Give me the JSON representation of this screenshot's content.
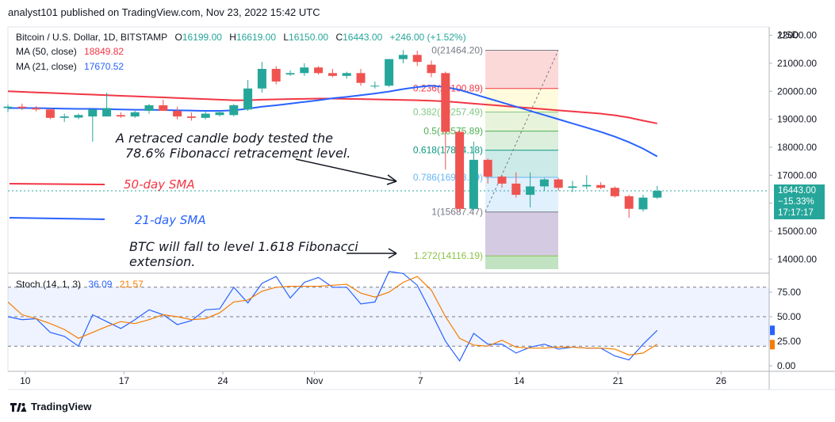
{
  "header": {
    "publisher_text": "analyst101 published on TradingView.com, Nov 23, 2022 15:42 UTC"
  },
  "legend": {
    "symbol": "Bitcoin / U.S. Dollar, 1D, BITSTAMP",
    "o_label": "O",
    "o_value": "16199.00",
    "h_label": "H",
    "h_value": "16619.00",
    "l_label": "L",
    "l_value": "16150.00",
    "c_label": "C",
    "c_value": "16443.00",
    "change": "+246.00 (+1.52%)",
    "ma50_label": "MA (50, close)",
    "ma50_value": "18849.82",
    "ma21_label": "MA (21, close)",
    "ma21_value": "17670.52"
  },
  "stoch": {
    "label": "Stoch (14, 1, 3)",
    "k_value": "36.09",
    "d_value": "21.57"
  },
  "annotations": {
    "candle_note_line1": "A retraced candle body tested the",
    "candle_note_line2": "78.6% Fibonacci retracement level.",
    "sma50_label": "50-day SMA",
    "sma21_label": "21-day SMA",
    "btc_note_line1": "BTC will fall to level 1.618 Fibonacci",
    "btc_note_line2": "extension."
  },
  "price_box": {
    "price": "16443.00",
    "change": "−15.33%",
    "countdown": "17:17:17"
  },
  "footer": {
    "brand": "TradingView"
  },
  "colors": {
    "up": "#26a69a",
    "down": "#ef5350",
    "ma50": "#f23645",
    "ma21": "#2962ff",
    "stoch_k": "#2962ff",
    "stoch_d": "#f57c00"
  },
  "chart_data": [
    {
      "type": "candlestick",
      "title": "Bitcoin / U.S. Dollar, 1D, BITSTAMP",
      "y_axis_label": "USD",
      "ylim": [
        13500,
        22300
      ],
      "y_ticks": [
        "22000.00",
        "21000.00",
        "20000.00",
        "19000.00",
        "18000.00",
        "17000.00",
        "16000.00",
        "15000.00",
        "14000.00"
      ],
      "x_ticks": [
        "10",
        "17",
        "24",
        "Nov",
        "7",
        "14",
        "21",
        "26"
      ],
      "candles": [
        {
          "o": 19400,
          "h": 19520,
          "l": 19250,
          "c": 19450
        },
        {
          "o": 19450,
          "h": 19560,
          "l": 19330,
          "c": 19400
        },
        {
          "o": 19400,
          "h": 19470,
          "l": 19280,
          "c": 19350
        },
        {
          "o": 19350,
          "h": 19400,
          "l": 19000,
          "c": 19050
        },
        {
          "o": 19050,
          "h": 19200,
          "l": 18900,
          "c": 19100
        },
        {
          "o": 19060,
          "h": 19200,
          "l": 19000,
          "c": 19150
        },
        {
          "o": 19100,
          "h": 19350,
          "l": 18200,
          "c": 19350
        },
        {
          "o": 19100,
          "h": 19950,
          "l": 19100,
          "c": 19400
        },
        {
          "o": 19150,
          "h": 19250,
          "l": 19050,
          "c": 19100
        },
        {
          "o": 19100,
          "h": 19300,
          "l": 19050,
          "c": 19250
        },
        {
          "o": 19300,
          "h": 19550,
          "l": 19200,
          "c": 19500
        },
        {
          "o": 19500,
          "h": 19700,
          "l": 19300,
          "c": 19300
        },
        {
          "o": 19300,
          "h": 19450,
          "l": 19000,
          "c": 19100
        },
        {
          "o": 19100,
          "h": 19250,
          "l": 18950,
          "c": 19050
        },
        {
          "o": 19050,
          "h": 19300,
          "l": 19000,
          "c": 19200
        },
        {
          "o": 19150,
          "h": 19300,
          "l": 19100,
          "c": 19250
        },
        {
          "o": 19150,
          "h": 19550,
          "l": 19100,
          "c": 19500
        },
        {
          "o": 19350,
          "h": 20400,
          "l": 19300,
          "c": 20100
        },
        {
          "o": 20100,
          "h": 21050,
          "l": 19950,
          "c": 20800
        },
        {
          "o": 20800,
          "h": 20900,
          "l": 20250,
          "c": 20350
        },
        {
          "o": 20600,
          "h": 20750,
          "l": 20550,
          "c": 20650
        },
        {
          "o": 20650,
          "h": 21000,
          "l": 20550,
          "c": 20850
        },
        {
          "o": 20850,
          "h": 20900,
          "l": 20600,
          "c": 20650
        },
        {
          "o": 20650,
          "h": 20800,
          "l": 20500,
          "c": 20550
        },
        {
          "o": 20550,
          "h": 20700,
          "l": 20450,
          "c": 20650
        },
        {
          "o": 20650,
          "h": 20800,
          "l": 20200,
          "c": 20300
        },
        {
          "o": 20200,
          "h": 20350,
          "l": 20100,
          "c": 20200
        },
        {
          "o": 20200,
          "h": 21150,
          "l": 20150,
          "c": 21150
        },
        {
          "o": 21150,
          "h": 21470,
          "l": 21000,
          "c": 21300
        },
        {
          "o": 21300,
          "h": 21450,
          "l": 20900,
          "c": 21050
        },
        {
          "o": 20950,
          "h": 21100,
          "l": 20500,
          "c": 20650
        },
        {
          "o": 20650,
          "h": 20700,
          "l": 17200,
          "c": 18550
        },
        {
          "o": 18550,
          "h": 18600,
          "l": 15690,
          "c": 15800
        },
        {
          "o": 15800,
          "h": 18200,
          "l": 15750,
          "c": 17550
        },
        {
          "o": 17550,
          "h": 17600,
          "l": 16700,
          "c": 16950
        },
        {
          "o": 16950,
          "h": 17000,
          "l": 16550,
          "c": 16700
        },
        {
          "o": 16700,
          "h": 17100,
          "l": 16200,
          "c": 16300
        },
        {
          "o": 16300,
          "h": 17100,
          "l": 15850,
          "c": 16600
        },
        {
          "o": 16600,
          "h": 16900,
          "l": 16450,
          "c": 16850
        },
        {
          "o": 16850,
          "h": 16900,
          "l": 16450,
          "c": 16550
        },
        {
          "o": 16550,
          "h": 16800,
          "l": 16400,
          "c": 16600
        },
        {
          "o": 16600,
          "h": 17000,
          "l": 16500,
          "c": 16650
        },
        {
          "o": 16650,
          "h": 16750,
          "l": 16500,
          "c": 16550
        },
        {
          "o": 16550,
          "h": 16600,
          "l": 16200,
          "c": 16250
        },
        {
          "o": 16250,
          "h": 16300,
          "l": 15480,
          "c": 15800
        },
        {
          "o": 15780,
          "h": 16300,
          "l": 15700,
          "c": 16200
        },
        {
          "o": 16199,
          "h": 16619,
          "l": 16150,
          "c": 16443
        }
      ],
      "series": [
        {
          "name": "MA (50, close)",
          "values": [
            20000,
            19980,
            19960,
            19940,
            19920,
            19900,
            19880,
            19860,
            19840,
            19820,
            19800,
            19780,
            19760,
            19740,
            19720,
            19700,
            19680,
            19680,
            19700,
            19710,
            19720,
            19730,
            19740,
            19740,
            19730,
            19720,
            19710,
            19700,
            19690,
            19680,
            19660,
            19640,
            19600,
            19560,
            19520,
            19480,
            19440,
            19400,
            19360,
            19320,
            19280,
            19240,
            19200,
            19140,
            19060,
            18950,
            18850
          ]
        },
        {
          "name": "MA (21, close)",
          "values": [
            19400,
            19400,
            19400,
            19390,
            19380,
            19370,
            19370,
            19360,
            19350,
            19340,
            19340,
            19330,
            19320,
            19310,
            19300,
            19300,
            19320,
            19380,
            19450,
            19500,
            19560,
            19620,
            19680,
            19750,
            19800,
            19860,
            19920,
            19990,
            20080,
            20150,
            20200,
            20150,
            20050,
            19900,
            19750,
            19600,
            19450,
            19300,
            19150,
            19000,
            18850,
            18700,
            18550,
            18380,
            18180,
            17950,
            17670
          ]
        }
      ],
      "fibonacci": [
        {
          "level": "0",
          "price": "21464.20"
        },
        {
          "level": "0.236",
          "price": "20100.89"
        },
        {
          "level": "0.382",
          "price": "19257.49"
        },
        {
          "level": "0.5",
          "price": "18575.89"
        },
        {
          "level": "0.618",
          "price": "17894.18"
        },
        {
          "level": "0.786",
          "price": "16923.69"
        },
        {
          "level": "1",
          "price": "15687.47"
        },
        {
          "level": "1.272",
          "price": "14116.19"
        }
      ],
      "current_price": 16443
    },
    {
      "type": "line",
      "title": "Stoch (14, 1, 3)",
      "ylim": [
        0,
        100
      ],
      "y_ticks": [
        "75.00",
        "50.00",
        "25.00",
        "0.00"
      ],
      "series": [
        {
          "name": "%K",
          "values": [
            50,
            47,
            48,
            34,
            30,
            20,
            52,
            45,
            38,
            47,
            57,
            52,
            42,
            46,
            57,
            58,
            80,
            64,
            84,
            91,
            69,
            85,
            90,
            80,
            80,
            63,
            65,
            96,
            94,
            82,
            54,
            25,
            5,
            33,
            22,
            22,
            13,
            19,
            22,
            17,
            19,
            18,
            18,
            10,
            6,
            22,
            36
          ]
        },
        {
          "name": "%D",
          "values": [
            65,
            52,
            48,
            43,
            37,
            28,
            34,
            40,
            45,
            43,
            47,
            52,
            50,
            47,
            48,
            54,
            65,
            67,
            76,
            80,
            81,
            81,
            81,
            82,
            83,
            74,
            70,
            75,
            85,
            91,
            77,
            50,
            28,
            21,
            20,
            26,
            19,
            18,
            18,
            19,
            19,
            18,
            18,
            17,
            11,
            13,
            22
          ]
        }
      ]
    }
  ]
}
